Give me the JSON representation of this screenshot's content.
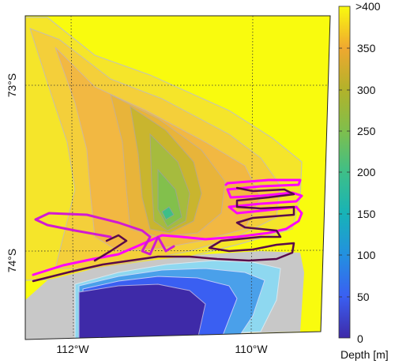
{
  "map": {
    "type": "bathymetry-contour-map",
    "lon_ticks": [
      {
        "label": "112°W"
      },
      {
        "label": "110°W"
      }
    ],
    "lat_ticks": [
      {
        "label": "73°S"
      },
      {
        "label": "74°S"
      }
    ],
    "grid": true,
    "track_colors": [
      "#d21ad2",
      "#ff00ff",
      "#5a0a4a"
    ]
  },
  "colorbar": {
    "label": "Depth [m]",
    "ticks": [
      ">400",
      "350",
      "300",
      "250",
      "200",
      "150",
      "100",
      "50",
      "0"
    ],
    "colormap": [
      "#f9fb0e",
      "#f9c830",
      "#d6b43c",
      "#b3b22a",
      "#7fbf4c",
      "#3ebf88",
      "#17b3b7",
      "#2390e0",
      "#3a5ff2",
      "#3e2aa8"
    ]
  }
}
